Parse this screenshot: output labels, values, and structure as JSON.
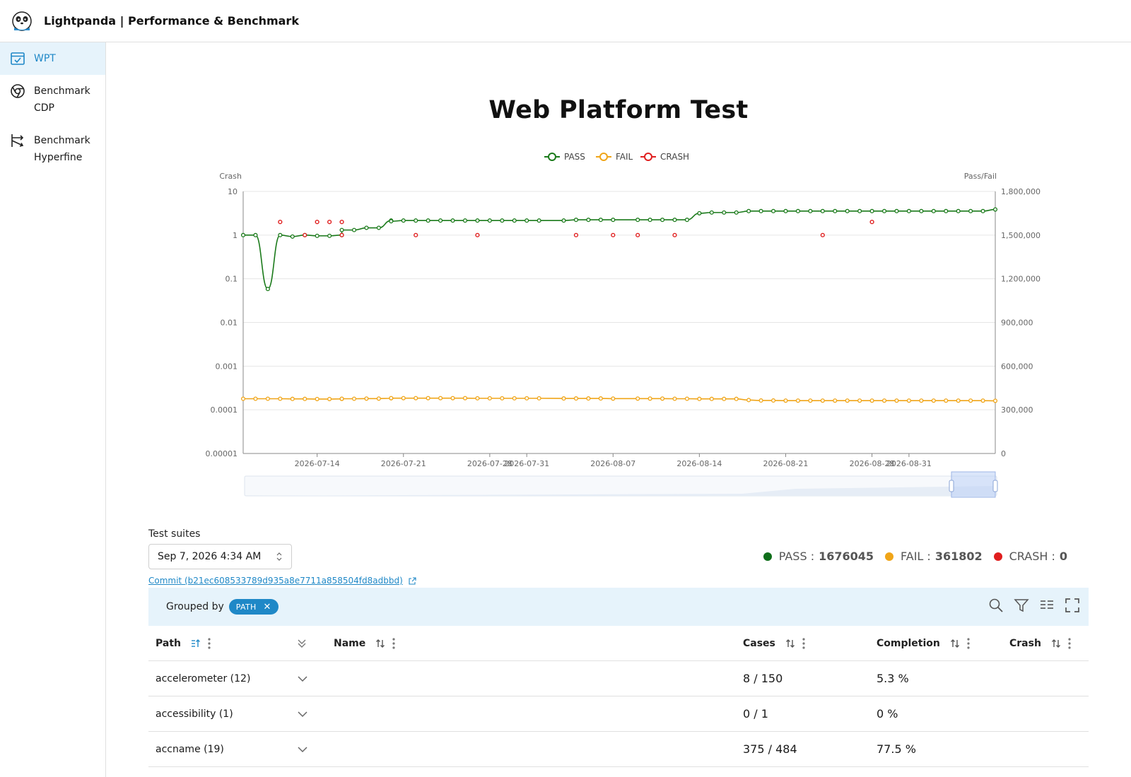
{
  "app": {
    "title": "Lightpanda | Performance & Benchmark"
  },
  "sidebar": {
    "items": [
      {
        "label": "WPT",
        "icon": "calendar-check-icon",
        "active": true
      },
      {
        "label": "Benchmark\nCDP",
        "icon": "chrome-icon",
        "active": false
      },
      {
        "label": "Benchmark\nHyperfine",
        "icon": "fork-arrows-icon",
        "active": false
      }
    ]
  },
  "page": {
    "title": "Web Platform Test"
  },
  "chart_data": {
    "type": "line",
    "legend": {
      "position": "top-center",
      "entries": [
        "PASS",
        "FAIL",
        "CRASH"
      ]
    },
    "colors": {
      "PASS": "#1a7a1a",
      "FAIL": "#f0a518",
      "CRASH": "#e01e1e"
    },
    "y_left": {
      "label": "Crash",
      "scale": "log",
      "ticks": [
        "10",
        "1",
        "0.1",
        "0.01",
        "0.001",
        "0.0001",
        "0.00001"
      ]
    },
    "y_right": {
      "label": "Pass/Fail",
      "range": [
        0,
        1800000
      ],
      "ticks": [
        "1,800,000",
        "1,500,000",
        "1,200,000",
        "900,000",
        "600,000",
        "300,000",
        "0"
      ]
    },
    "x_ticks": [
      "2026-07-14",
      "2026-07-21",
      "2026-07-28",
      "2026-07-31",
      "2026-08-07",
      "2026-08-14",
      "2026-08-21",
      "2026-08-28",
      "2026-08-31"
    ],
    "x": [
      "2026-07-08",
      "2026-07-09",
      "2026-07-10",
      "2026-07-11",
      "2026-07-12",
      "2026-07-13",
      "2026-07-14",
      "2026-07-15",
      "2026-07-16",
      "2026-07-16",
      "2026-07-17",
      "2026-07-18",
      "2026-07-19",
      "2026-07-20",
      "2026-07-20",
      "2026-07-21",
      "2026-07-22",
      "2026-07-23",
      "2026-07-24",
      "2026-07-25",
      "2026-07-26",
      "2026-07-27",
      "2026-07-28",
      "2026-07-29",
      "2026-07-30",
      "2026-07-31",
      "2026-08-01",
      "2026-08-03",
      "2026-08-04",
      "2026-08-05",
      "2026-08-06",
      "2026-08-07",
      "2026-08-09",
      "2026-08-10",
      "2026-08-11",
      "2026-08-12",
      "2026-08-13",
      "2026-08-14",
      "2026-08-15",
      "2026-08-16",
      "2026-08-17",
      "2026-08-18",
      "2026-08-19",
      "2026-08-20",
      "2026-08-21",
      "2026-08-22",
      "2026-08-23",
      "2026-08-24",
      "2026-08-25",
      "2026-08-26",
      "2026-08-27",
      "2026-08-28",
      "2026-08-29",
      "2026-08-30",
      "2026-08-31",
      "2026-09-01",
      "2026-09-02",
      "2026-09-03",
      "2026-09-04",
      "2026-09-05",
      "2026-09-06",
      "2026-09-07"
    ],
    "series": [
      {
        "name": "PASS",
        "axis": "right",
        "values": [
          1500000,
          1500000,
          1130000,
          1500000,
          1490000,
          1500000,
          1495000,
          1495000,
          1500000,
          1535000,
          1535000,
          1550000,
          1550000,
          1600000,
          1595000,
          1600000,
          1600000,
          1600000,
          1600000,
          1600000,
          1600000,
          1600000,
          1600000,
          1600000,
          1600000,
          1600000,
          1600000,
          1600000,
          1605000,
          1605000,
          1605000,
          1605000,
          1605000,
          1605000,
          1605000,
          1605000,
          1605000,
          1650000,
          1655000,
          1655000,
          1655000,
          1665000,
          1665000,
          1665000,
          1665000,
          1665000,
          1665000,
          1665000,
          1665000,
          1665000,
          1665000,
          1665000,
          1665000,
          1665000,
          1665000,
          1665000,
          1665000,
          1665000,
          1665000,
          1665000,
          1665000,
          1676045
        ]
      },
      {
        "name": "FAIL",
        "axis": "right",
        "values": [
          376000,
          376000,
          376000,
          376000,
          375000,
          375000,
          374000,
          374000,
          375000,
          376000,
          376000,
          377000,
          377000,
          379000,
          380000,
          380000,
          380000,
          380000,
          380000,
          380000,
          380000,
          379000,
          379000,
          379000,
          379000,
          379000,
          379000,
          378000,
          378000,
          378000,
          378000,
          377000,
          377000,
          377000,
          377000,
          376000,
          376000,
          375000,
          375000,
          375000,
          375000,
          367000,
          364000,
          364000,
          363000,
          363000,
          363000,
          363000,
          363000,
          363000,
          363000,
          363000,
          363000,
          363000,
          363000,
          363000,
          363000,
          363000,
          363000,
          363000,
          363000,
          361802
        ]
      },
      {
        "name": "CRASH",
        "axis": "left",
        "points": [
          [
            "2026-07-11",
            2
          ],
          [
            "2026-07-13",
            1
          ],
          [
            "2026-07-14",
            2
          ],
          [
            "2026-07-15",
            2
          ],
          [
            "2026-07-16",
            1
          ],
          [
            "2026-07-16",
            2
          ],
          [
            "2026-07-22",
            1
          ],
          [
            "2026-07-27",
            1
          ],
          [
            "2026-08-04",
            1
          ],
          [
            "2026-08-07",
            1
          ],
          [
            "2026-08-09",
            1
          ],
          [
            "2026-08-12",
            1
          ],
          [
            "2026-08-24",
            1
          ],
          [
            "2026-08-28",
            2
          ]
        ]
      }
    ]
  },
  "controls": {
    "suite_label": "Test suites",
    "suite_value": "Sep 7, 2026 4:34 AM",
    "commit": "Commit (b21ec608533789d935a8e7711a858504fd8adbbd)"
  },
  "summary": {
    "pass_label": "PASS :",
    "pass_value": "1676045",
    "fail_label": "FAIL :",
    "fail_value": "361802",
    "crash_label": "CRASH :",
    "crash_value": "0"
  },
  "grouping": {
    "label": "Grouped by",
    "chip": "PATH"
  },
  "table": {
    "headers": {
      "path": "Path",
      "name": "Name",
      "cases": "Cases",
      "completion": "Completion",
      "crash": "Crash"
    },
    "rows": [
      {
        "path": "accelerometer (12)",
        "cases": "8 / 150",
        "completion": "5.3 %"
      },
      {
        "path": "accessibility (1)",
        "cases": "0 / 1",
        "completion": "0 %"
      },
      {
        "path": "accname (19)",
        "cases": "375 / 484",
        "completion": "77.5 %"
      }
    ]
  }
}
